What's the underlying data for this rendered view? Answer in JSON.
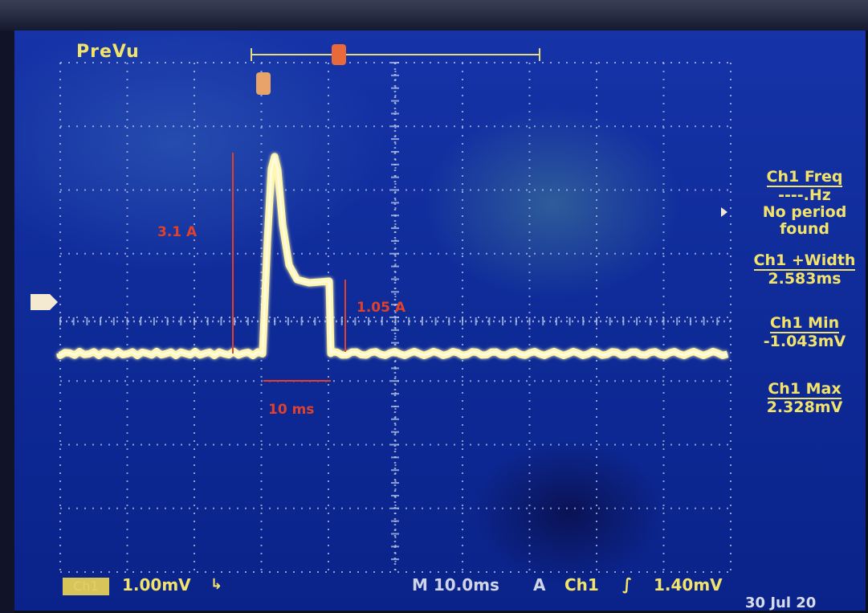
{
  "preview_label": "PreVu",
  "channel_marker": "1",
  "annotations": {
    "peak_current": "3.1 A",
    "plateau_current": "1.05 A",
    "pulse_duration": "10 ms"
  },
  "measurements": [
    {
      "title": "Ch1 Freq",
      "lines": [
        "----.Hz",
        "No period",
        "found"
      ]
    },
    {
      "title": "Ch1 +Width",
      "lines": [
        "2.583ms"
      ]
    },
    {
      "title": "Ch1 Min",
      "lines": [
        "-1.043mV"
      ]
    },
    {
      "title": "Ch1 Max",
      "lines": [
        "2.328mV"
      ]
    }
  ],
  "status_bar": {
    "channel": "Ch1",
    "vertical_scale": "1.00mV",
    "bw_symbol": "↳",
    "timebase": "M 10.0ms",
    "trigger_mode": "A",
    "trigger_channel": "Ch1",
    "trigger_slope": "∫",
    "trigger_level": "1.40mV"
  },
  "date": "30 Jul 20",
  "colors": {
    "trace": "#fff6b0",
    "annotation": "#e0412a",
    "text": "#f2e36a",
    "screen": "#0e2a96"
  }
}
